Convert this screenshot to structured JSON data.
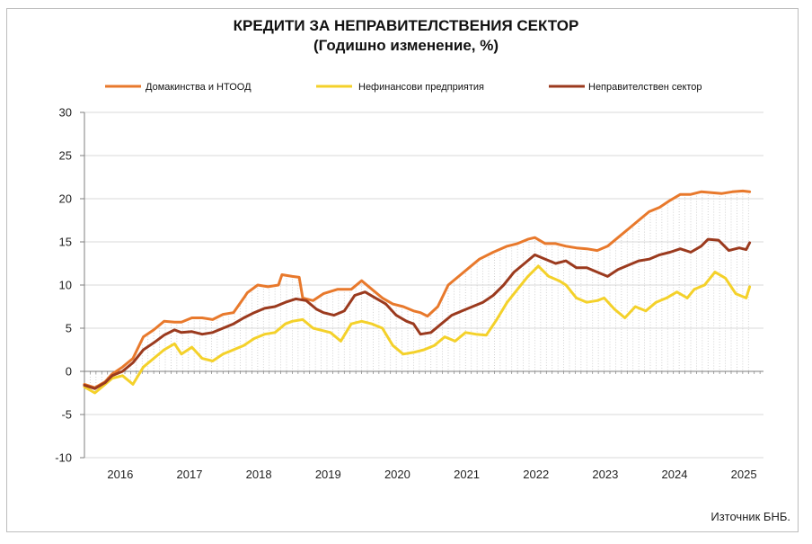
{
  "chart_data": {
    "type": "line",
    "title": "КРЕДИТИ ЗА НЕПРАВИТЕЛСТВЕНИЯ  СЕКТОР",
    "subtitle": "(Годишно  изменение, %)",
    "source": "Източник БНБ.",
    "legend_position": "top",
    "ylim": [
      -10,
      30
    ],
    "yticks": [
      "30",
      "25",
      "20",
      "15",
      "10",
      "5",
      "0",
      "-5",
      "-10"
    ],
    "xlim": [
      2015.6,
      2025.4
    ],
    "xticks": [
      {
        "label": "2016",
        "pos": 2016.0
      },
      {
        "label": "2017",
        "pos": 2017.0
      },
      {
        "label": "2018",
        "pos": 2018.0
      },
      {
        "label": "2019",
        "pos": 2019.0
      },
      {
        "label": "2020",
        "pos": 2020.0
      },
      {
        "label": "2021",
        "pos": 2021.0
      },
      {
        "label": "2022",
        "pos": 2022.0
      },
      {
        "label": "2023",
        "pos": 2023.0
      },
      {
        "label": "2024",
        "pos": 2024.0
      },
      {
        "label": "2025",
        "pos": 2025.0
      }
    ],
    "grid": "horizontal",
    "series": [
      {
        "name": "Домакинства и НТООД",
        "color": "#e8792c",
        "x": [
          2015.6,
          2015.75,
          2015.9,
          2016.0,
          2016.15,
          2016.3,
          2016.45,
          2016.6,
          2016.75,
          2016.9,
          2017.0,
          2017.15,
          2017.3,
          2017.45,
          2017.6,
          2017.75,
          2017.9,
          2017.95,
          2018.1,
          2018.25,
          2018.4,
          2018.45,
          2018.6,
          2018.7,
          2018.75,
          2018.9,
          2019.05,
          2019.25,
          2019.45,
          2019.6,
          2019.75,
          2019.9,
          2020.05,
          2020.2,
          2020.35,
          2020.45,
          2020.55,
          2020.7,
          2020.85,
          2021.0,
          2021.15,
          2021.3,
          2021.5,
          2021.7,
          2021.85,
          2022.0,
          2022.1,
          2022.25,
          2022.4,
          2022.55,
          2022.7,
          2022.85,
          2023.0,
          2023.15,
          2023.3,
          2023.45,
          2023.6,
          2023.75,
          2023.9,
          2024.05,
          2024.2,
          2024.35,
          2024.5,
          2024.65,
          2024.8,
          2024.95,
          2025.1,
          2025.2
        ],
        "values": [
          -1.5,
          -1.9,
          -1.2,
          -0.3,
          0.5,
          1.5,
          4.0,
          4.8,
          5.8,
          5.7,
          5.7,
          6.2,
          6.2,
          6.0,
          6.6,
          6.8,
          8.5,
          9.1,
          10.0,
          9.8,
          10.0,
          11.2,
          11.0,
          10.9,
          8.5,
          8.2,
          9.0,
          9.5,
          9.5,
          10.5,
          9.5,
          8.5,
          7.8,
          7.5,
          7.0,
          6.8,
          6.4,
          7.5,
          10.0,
          11.0,
          12.0,
          13.0,
          13.8,
          14.5,
          14.8,
          15.3,
          15.5,
          14.8,
          14.8,
          14.5,
          14.3,
          14.2,
          14.0,
          14.5,
          15.5,
          16.5,
          17.5,
          18.5,
          19.0,
          19.8,
          20.5,
          20.5,
          20.8,
          20.7,
          20.6,
          20.8,
          20.9,
          20.8
        ]
      },
      {
        "name": "Нефинансови предприятия",
        "color": "#f4d12a",
        "x": [
          2015.6,
          2015.75,
          2015.9,
          2016.0,
          2016.15,
          2016.3,
          2016.45,
          2016.6,
          2016.75,
          2016.9,
          2017.0,
          2017.15,
          2017.3,
          2017.45,
          2017.6,
          2017.75,
          2017.9,
          2018.05,
          2018.2,
          2018.35,
          2018.5,
          2018.6,
          2018.75,
          2018.9,
          2019.0,
          2019.15,
          2019.3,
          2019.45,
          2019.6,
          2019.75,
          2019.9,
          2020.05,
          2020.2,
          2020.35,
          2020.5,
          2020.65,
          2020.8,
          2020.95,
          2021.1,
          2021.25,
          2021.4,
          2021.55,
          2021.7,
          2021.85,
          2022.0,
          2022.15,
          2022.3,
          2022.45,
          2022.55,
          2022.7,
          2022.85,
          2023.0,
          2023.1,
          2023.25,
          2023.4,
          2023.55,
          2023.7,
          2023.85,
          2024.0,
          2024.15,
          2024.3,
          2024.4,
          2024.55,
          2024.7,
          2024.85,
          2025.0,
          2025.15,
          2025.2
        ],
        "values": [
          -1.8,
          -2.5,
          -1.5,
          -0.8,
          -0.5,
          -1.5,
          0.5,
          1.5,
          2.5,
          3.2,
          2.0,
          2.8,
          1.5,
          1.2,
          2.0,
          2.5,
          3.0,
          3.8,
          4.3,
          4.5,
          5.5,
          5.8,
          6.0,
          5.0,
          4.8,
          4.5,
          3.5,
          5.5,
          5.8,
          5.5,
          5.0,
          3.0,
          2.0,
          2.2,
          2.5,
          3.0,
          4.0,
          3.5,
          4.5,
          4.3,
          4.2,
          6.0,
          8.0,
          9.5,
          11.0,
          12.2,
          11.0,
          10.5,
          10.0,
          8.5,
          8.0,
          8.2,
          8.5,
          7.2,
          6.2,
          7.5,
          7.0,
          8.0,
          8.5,
          9.2,
          8.5,
          9.5,
          10.0,
          11.5,
          10.8,
          9.0,
          8.5,
          9.8
        ]
      },
      {
        "name": "Неправителствен сектор",
        "color": "#9b3a1e",
        "x": [
          2015.6,
          2015.75,
          2015.9,
          2016.0,
          2016.15,
          2016.3,
          2016.45,
          2016.6,
          2016.75,
          2016.9,
          2017.0,
          2017.15,
          2017.3,
          2017.45,
          2017.6,
          2017.75,
          2017.9,
          2018.05,
          2018.2,
          2018.35,
          2018.5,
          2018.65,
          2018.8,
          2018.95,
          2019.05,
          2019.2,
          2019.35,
          2019.5,
          2019.65,
          2019.8,
          2019.95,
          2020.1,
          2020.25,
          2020.35,
          2020.45,
          2020.6,
          2020.75,
          2020.9,
          2021.05,
          2021.2,
          2021.35,
          2021.5,
          2021.65,
          2021.8,
          2021.95,
          2022.1,
          2022.25,
          2022.4,
          2022.55,
          2022.7,
          2022.85,
          2023.0,
          2023.15,
          2023.3,
          2023.45,
          2023.6,
          2023.75,
          2023.9,
          2024.05,
          2024.2,
          2024.35,
          2024.5,
          2024.6,
          2024.75,
          2024.9,
          2025.05,
          2025.15,
          2025.2
        ],
        "values": [
          -1.6,
          -2.0,
          -1.3,
          -0.5,
          0.0,
          1.0,
          2.5,
          3.3,
          4.2,
          4.8,
          4.5,
          4.6,
          4.3,
          4.5,
          5.0,
          5.5,
          6.2,
          6.8,
          7.3,
          7.5,
          8.0,
          8.4,
          8.2,
          7.2,
          6.8,
          6.5,
          7.0,
          8.8,
          9.2,
          8.5,
          7.8,
          6.5,
          5.8,
          5.5,
          4.3,
          4.5,
          5.5,
          6.5,
          7.0,
          7.5,
          8.0,
          8.8,
          10.0,
          11.5,
          12.5,
          13.5,
          13.0,
          12.5,
          12.8,
          12.0,
          12.0,
          11.5,
          11.0,
          11.8,
          12.3,
          12.8,
          13.0,
          13.5,
          13.8,
          14.2,
          13.8,
          14.5,
          15.3,
          15.2,
          14.0,
          14.3,
          14.1,
          14.9
        ]
      }
    ]
  }
}
